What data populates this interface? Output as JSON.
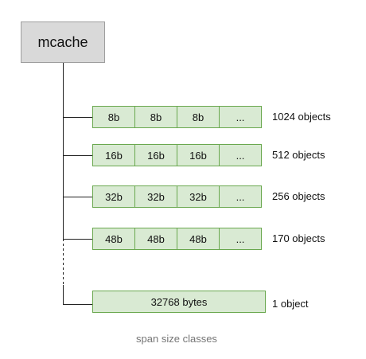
{
  "mcache": {
    "label": "mcache"
  },
  "span_classes": [
    {
      "cells": [
        "8b",
        "8b",
        "8b",
        "..."
      ],
      "count": "1024 objects"
    },
    {
      "cells": [
        "16b",
        "16b",
        "16b",
        "..."
      ],
      "count": "512 objects"
    },
    {
      "cells": [
        "32b",
        "32b",
        "32b",
        "..."
      ],
      "count": "256 objects"
    },
    {
      "cells": [
        "48b",
        "48b",
        "48b",
        "..."
      ],
      "count": "170 objects"
    }
  ],
  "large_span": {
    "label": "32768 bytes",
    "count": "1 object"
  },
  "caption": "span size classes",
  "colors": {
    "mcache_fill": "#d9d9d9",
    "span_fill": "#d9ead3",
    "span_border": "#6aa84f",
    "connector": "#222222"
  }
}
